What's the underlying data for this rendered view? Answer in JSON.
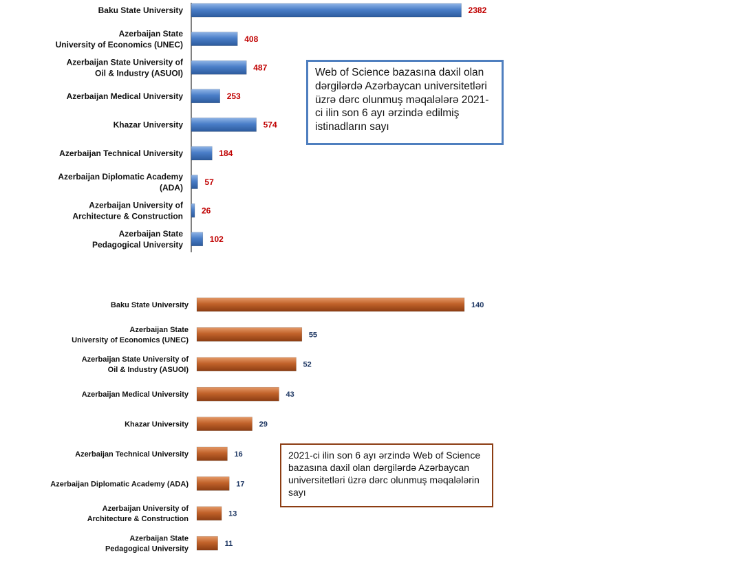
{
  "chart_data": [
    {
      "type": "bar",
      "orientation": "horizontal",
      "categories": [
        "Baku State University",
        "Azerbaijan State\nUniversity of Economics (UNEC)",
        "Azerbaijan State University of\nOil & Industry (ASUOI)",
        "Azerbaijan Medical University",
        "Khazar University",
        "Azerbaijan Technical University",
        "Azerbaijan Diplomatic Academy\n(ADA)",
        "Azerbaijan University of\nArchitecture & Construction",
        "Azerbaijan State\nPedagogical University"
      ],
      "values": [
        2382,
        408,
        487,
        253,
        574,
        184,
        57,
        26,
        102
      ],
      "xlim": [
        0,
        2500
      ],
      "bar_color": "#4a7ec8",
      "value_label_color": "#c00000",
      "note": "Web of Science bazasına daxil olan dərgilərdə Azərbaycan universitetləri üzrə dərc olunmuş məqalələrə 2021-ci ilin son 6 ayı ərzində edilmiş istinadların sayı"
    },
    {
      "type": "bar",
      "orientation": "horizontal",
      "categories": [
        "Baku State University",
        "Azerbaijan State\nUniversity of Economics (UNEC)",
        "Azerbaijan State University of\nOil & Industry (ASUOI)",
        "Azerbaijan Medical University",
        "Khazar University",
        "Azerbaijan Technical University",
        "Azerbaijan Diplomatic Academy (ADA)",
        "Azerbaijan University of\nArchitecture & Construction",
        "Azerbaijan State\nPedagogical University"
      ],
      "values": [
        140,
        55,
        52,
        43,
        29,
        16,
        17,
        13,
        11
      ],
      "xlim": [
        0,
        140
      ],
      "bar_color": "#c1622a",
      "value_label_color": "#1f3864",
      "note": "2021-ci ilin son 6 ayı ərzində Web of Science bazasına daxil olan dərgilərdə Azərbaycan universitetləri üzrə dərc olunmuş məqalələrin sayı"
    }
  ]
}
